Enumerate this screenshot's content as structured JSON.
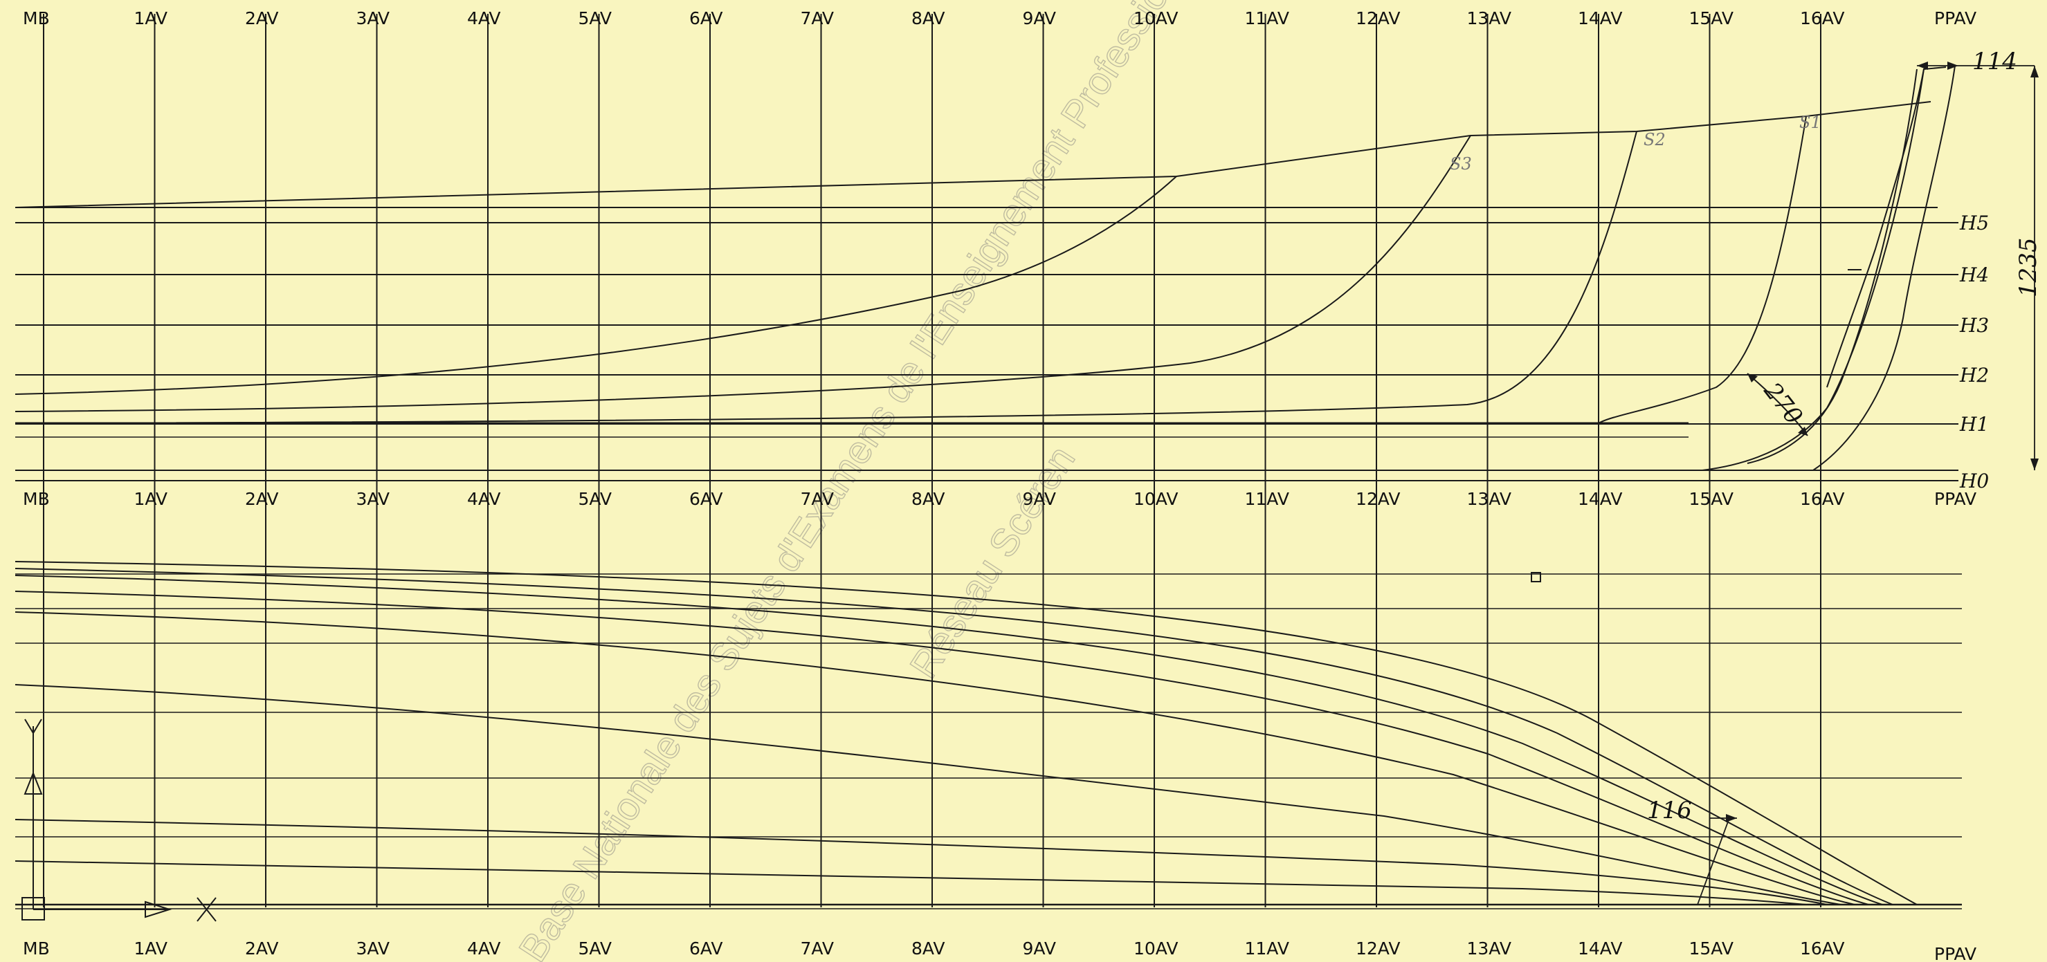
{
  "stations": [
    "MB",
    "1AV",
    "2AV",
    "3AV",
    "4AV",
    "5AV",
    "6AV",
    "7AV",
    "8AV",
    "9AV",
    "10AV",
    "11AV",
    "12AV",
    "13AV",
    "14AV",
    "15AV",
    "16AV",
    "PPAV"
  ],
  "waterlines": [
    "H5",
    "H4",
    "H3",
    "H2",
    "H1",
    "H0"
  ],
  "section_labels": [
    "S3",
    "S2",
    "S1"
  ],
  "dimensions": {
    "top_offset": "114",
    "overall_height": "1235",
    "angle_value": "270",
    "half_breadth_offset": "116"
  },
  "watermark": {
    "line1": "Base Nationale des Sujets d'Examens de l'Enseignement Professionnel",
    "line2": "Réseau Scéren"
  },
  "colors": {
    "background": "#f9f5bf",
    "ink": "#1a1a1a",
    "watermark": "#bfbca0"
  }
}
